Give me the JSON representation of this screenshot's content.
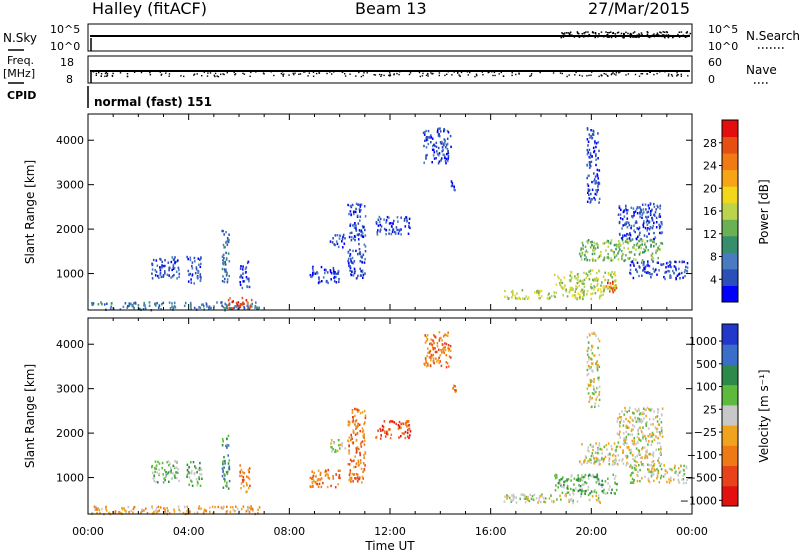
{
  "header": {
    "station": "Halley (fitACF)",
    "beam": "Beam 13",
    "date": "27/Mar/2015"
  },
  "status_panels": {
    "nsky": {
      "label": "N.Sky",
      "left_ticks": [
        "10^5",
        "10^0"
      ],
      "right_label": "N.Search",
      "right_ticks": [
        "10^5",
        "10^0"
      ]
    },
    "freq": {
      "label_line1": "Freq.",
      "label_line2": "[MHz]",
      "left_ticks": [
        "18",
        "8"
      ],
      "right_label": "Nave",
      "right_ticks": [
        "60",
        "0"
      ]
    },
    "cpid": {
      "label": "CPID",
      "text": "normal (fast) 151"
    }
  },
  "chart_data": [
    {
      "type": "scatter",
      "panel": "power",
      "xlabel": "Time UT",
      "ylabel": "Slant Range [km]",
      "x_ticks": [
        "00:00",
        "04:00",
        "08:00",
        "12:00",
        "16:00",
        "20:00",
        "00:00"
      ],
      "xlim_hours": [
        0,
        24
      ],
      "y_ticks": [
        1000,
        2000,
        3000,
        4000
      ],
      "ylim": [
        180,
        4590
      ],
      "colorbar": {
        "label": "Power [dB]",
        "ticks": [
          "4",
          "8",
          "12",
          "16",
          "20",
          "24",
          "28"
        ],
        "colors": [
          "#0000ff",
          "#2b4fb8",
          "#4a7ac0",
          "#358f6c",
          "#6bb053",
          "#bcd34c",
          "#f2d71a",
          "#f7a516",
          "#f07a14",
          "#e54f12",
          "#e30f0f"
        ]
      },
      "echo_regions": [
        {
          "t0": 0.1,
          "t1": 6.8,
          "r0": 200,
          "r1": 380,
          "level": 2
        },
        {
          "t0": 2.5,
          "t1": 3.6,
          "r0": 900,
          "r1": 1400,
          "level": 1
        },
        {
          "t0": 3.9,
          "t1": 4.5,
          "r0": 800,
          "r1": 1400,
          "level": 1
        },
        {
          "t0": 5.3,
          "t1": 5.6,
          "r0": 700,
          "r1": 2000,
          "level": 2
        },
        {
          "t0": 6.0,
          "t1": 6.4,
          "r0": 700,
          "r1": 1300,
          "level": 1
        },
        {
          "t0": 5.5,
          "t1": 6.5,
          "r0": 230,
          "r1": 480,
          "level": 9
        },
        {
          "t0": 8.8,
          "t1": 10.0,
          "r0": 800,
          "r1": 1200,
          "level": 1
        },
        {
          "t0": 9.6,
          "t1": 10.2,
          "r0": 1600,
          "r1": 1900,
          "level": 1
        },
        {
          "t0": 10.3,
          "t1": 11.0,
          "r0": 900,
          "r1": 2600,
          "level": 1
        },
        {
          "t0": 11.4,
          "t1": 12.8,
          "r0": 1900,
          "r1": 2300,
          "level": 1
        },
        {
          "t0": 13.3,
          "t1": 14.4,
          "r0": 3500,
          "r1": 4300,
          "level": 1
        },
        {
          "t0": 14.4,
          "t1": 14.6,
          "r0": 2900,
          "r1": 3100,
          "level": 1
        },
        {
          "t0": 16.5,
          "t1": 20.5,
          "r0": 450,
          "r1": 650,
          "level": 5
        },
        {
          "t0": 18.5,
          "t1": 21.0,
          "r0": 650,
          "r1": 1100,
          "level": 5
        },
        {
          "t0": 20.5,
          "t1": 21.0,
          "r0": 600,
          "r1": 850,
          "level": 9
        },
        {
          "t0": 19.5,
          "t1": 22.8,
          "r0": 1300,
          "r1": 1800,
          "level": 4
        },
        {
          "t0": 21.0,
          "t1": 22.8,
          "r0": 1800,
          "r1": 2600,
          "level": 1
        },
        {
          "t0": 21.5,
          "t1": 23.8,
          "r0": 900,
          "r1": 1300,
          "level": 1
        },
        {
          "t0": 19.8,
          "t1": 20.3,
          "r0": 2600,
          "r1": 4300,
          "level": 1
        }
      ]
    },
    {
      "type": "scatter",
      "panel": "velocity",
      "xlabel": "Time UT",
      "ylabel": "Slant Range [km]",
      "x_ticks": [
        "00:00",
        "04:00",
        "08:00",
        "12:00",
        "16:00",
        "20:00",
        "00:00"
      ],
      "xlim_hours": [
        0,
        24
      ],
      "y_ticks": [
        1000,
        2000,
        3000,
        4000
      ],
      "ylim": [
        180,
        4590
      ],
      "colorbar": {
        "label": "Velocity [m s⁻¹]",
        "ticks": [
          "1000",
          "500",
          "100",
          "25",
          "−25",
          "−100",
          "−500",
          "−1000"
        ],
        "colors": [
          "#2238cc",
          "#3a6ec8",
          "#2e8a4a",
          "#5dba3c",
          "#c8c8c8",
          "#f0a31c",
          "#ef7a15",
          "#e8421a",
          "#e31010"
        ]
      },
      "echo_regions": [
        {
          "t0": 0.1,
          "t1": 6.8,
          "r0": 200,
          "r1": 380,
          "level": 5
        },
        {
          "t0": 2.5,
          "t1": 3.6,
          "r0": 900,
          "r1": 1400,
          "level": 3
        },
        {
          "t0": 3.9,
          "t1": 4.5,
          "r0": 800,
          "r1": 1400,
          "level": 3
        },
        {
          "t0": 5.3,
          "t1": 5.6,
          "r0": 700,
          "r1": 2000,
          "level": 2
        },
        {
          "t0": 6.0,
          "t1": 6.4,
          "r0": 700,
          "r1": 1300,
          "level": 6
        },
        {
          "t0": 8.8,
          "t1": 10.0,
          "r0": 800,
          "r1": 1200,
          "level": 6
        },
        {
          "t0": 9.6,
          "t1": 10.2,
          "r0": 1600,
          "r1": 1900,
          "level": 4
        },
        {
          "t0": 10.3,
          "t1": 11.0,
          "r0": 900,
          "r1": 2600,
          "level": 6
        },
        {
          "t0": 11.4,
          "t1": 12.8,
          "r0": 1900,
          "r1": 2300,
          "level": 7
        },
        {
          "t0": 13.3,
          "t1": 14.4,
          "r0": 3500,
          "r1": 4300,
          "level": 6
        },
        {
          "t0": 14.4,
          "t1": 14.6,
          "r0": 2900,
          "r1": 3100,
          "level": 6
        },
        {
          "t0": 16.5,
          "t1": 20.5,
          "r0": 450,
          "r1": 650,
          "level": 4
        },
        {
          "t0": 18.5,
          "t1": 21.0,
          "r0": 650,
          "r1": 1100,
          "level": 3
        },
        {
          "t0": 19.5,
          "t1": 22.8,
          "r0": 1300,
          "r1": 1800,
          "level": 4
        },
        {
          "t0": 21.0,
          "t1": 22.8,
          "r0": 1800,
          "r1": 2600,
          "level": 4
        },
        {
          "t0": 21.5,
          "t1": 23.8,
          "r0": 900,
          "r1": 1300,
          "level": 4
        },
        {
          "t0": 19.8,
          "t1": 20.3,
          "r0": 2600,
          "r1": 4300,
          "level": 4
        }
      ]
    }
  ]
}
